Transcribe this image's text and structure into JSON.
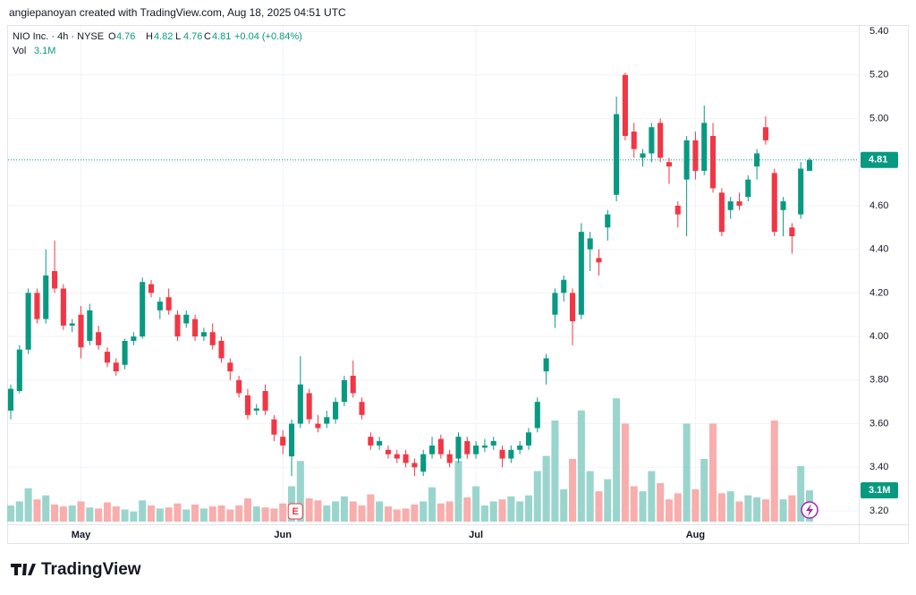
{
  "header": {
    "attribution": "angiepanoyan created with TradingView.com, Aug 18, 2025 04:51 UTC",
    "logo": "TradingView"
  },
  "chart_data": {
    "type": "candlestick",
    "symbol": "NIO Inc. · 4h · NYSE",
    "ohlc_letters": [
      "O",
      "H",
      "L",
      "C"
    ],
    "change_label": "+0.04 (+0.84%)",
    "volume_title": "Vol",
    "volume_label": "3.1M",
    "earnings_marker": "E",
    "up_color": "#089981",
    "down_color": "#f23645",
    "up_volume_color": "#9ad5cd",
    "down_volume_color": "#f7aeac",
    "grid": true,
    "ylim": [
      3.14,
      5.44
    ],
    "yticks": [
      {
        "value": 3.2,
        "label": "3.20"
      },
      {
        "value": 3.4,
        "label": "3.40"
      },
      {
        "value": 3.6,
        "label": "3.60"
      },
      {
        "value": 3.8,
        "label": "3.80"
      },
      {
        "value": 4,
        "label": "4.00"
      },
      {
        "value": 4.2,
        "label": "4.20"
      },
      {
        "value": 4.4,
        "label": "4.40"
      },
      {
        "value": 4.6,
        "label": "4.60"
      },
      {
        "value": 4.8,
        "label": "4.80"
      },
      {
        "value": 5,
        "label": "5.00"
      },
      {
        "value": 5.2,
        "label": "5.20"
      },
      {
        "value": 5.4,
        "label": "5.40"
      }
    ],
    "categories": [
      null,
      null,
      null,
      null,
      null,
      null,
      null,
      null,
      "May",
      null,
      null,
      null,
      null,
      null,
      null,
      null,
      null,
      null,
      null,
      null,
      null,
      null,
      null,
      null,
      null,
      null,
      null,
      null,
      null,
      null,
      null,
      "Jun",
      null,
      null,
      null,
      null,
      null,
      null,
      null,
      null,
      null,
      null,
      null,
      null,
      null,
      null,
      null,
      null,
      null,
      null,
      null,
      null,
      null,
      "Jul",
      null,
      null,
      null,
      null,
      null,
      null,
      null,
      null,
      null,
      null,
      null,
      null,
      null,
      null,
      null,
      null,
      null,
      null,
      null,
      null,
      null,
      null,
      null,
      null,
      "Aug",
      null,
      null,
      null,
      null,
      null,
      null,
      null,
      null,
      null,
      null,
      null,
      null,
      null
    ],
    "candles": [
      {
        "o": 3.66,
        "h": 3.78,
        "l": 3.62,
        "c": 3.76,
        "v": 1.6
      },
      {
        "o": 3.75,
        "h": 3.96,
        "l": 3.74,
        "c": 3.94,
        "v": 2.0
      },
      {
        "o": 3.94,
        "h": 4.22,
        "l": 3.92,
        "c": 4.2,
        "v": 3.3
      },
      {
        "o": 4.2,
        "h": 4.22,
        "l": 4.06,
        "c": 4.08,
        "v": 2.2
      },
      {
        "o": 4.08,
        "h": 4.4,
        "l": 4.06,
        "c": 4.28,
        "v": 2.6
      },
      {
        "o": 4.3,
        "h": 4.44,
        "l": 4.2,
        "c": 4.22,
        "v": 1.7
      },
      {
        "o": 4.22,
        "h": 4.24,
        "l": 4.03,
        "c": 4.05,
        "v": 1.5
      },
      {
        "o": 4.05,
        "h": 4.08,
        "l": 4.02,
        "c": 4.06,
        "v": 1.6
      },
      {
        "o": 4.1,
        "h": 4.14,
        "l": 3.9,
        "c": 3.95,
        "v": 2.0
      },
      {
        "o": 3.98,
        "h": 4.15,
        "l": 3.96,
        "c": 4.12,
        "v": 1.4
      },
      {
        "o": 4.02,
        "h": 4.05,
        "l": 3.94,
        "c": 3.96,
        "v": 1.3
      },
      {
        "o": 3.93,
        "h": 3.95,
        "l": 3.86,
        "c": 3.88,
        "v": 1.9
      },
      {
        "o": 3.88,
        "h": 3.9,
        "l": 3.82,
        "c": 3.84,
        "v": 1.5
      },
      {
        "o": 3.87,
        "h": 3.99,
        "l": 3.85,
        "c": 3.98,
        "v": 1.2
      },
      {
        "o": 3.98,
        "h": 4.02,
        "l": 3.96,
        "c": 4.0,
        "v": 1.0
      },
      {
        "o": 4.0,
        "h": 4.27,
        "l": 3.99,
        "c": 4.25,
        "v": 2.1
      },
      {
        "o": 4.24,
        "h": 4.26,
        "l": 4.18,
        "c": 4.2,
        "v": 1.6
      },
      {
        "o": 4.12,
        "h": 4.18,
        "l": 4.08,
        "c": 4.16,
        "v": 1.3
      },
      {
        "o": 4.18,
        "h": 4.22,
        "l": 4.1,
        "c": 4.12,
        "v": 1.4
      },
      {
        "o": 4.1,
        "h": 4.12,
        "l": 3.98,
        "c": 4.0,
        "v": 1.8
      },
      {
        "o": 4.06,
        "h": 4.12,
        "l": 4.04,
        "c": 4.1,
        "v": 1.2
      },
      {
        "o": 4.08,
        "h": 4.1,
        "l": 3.98,
        "c": 4.0,
        "v": 1.7
      },
      {
        "o": 4.0,
        "h": 4.04,
        "l": 3.98,
        "c": 4.02,
        "v": 1.3
      },
      {
        "o": 4.02,
        "h": 4.06,
        "l": 3.94,
        "c": 3.96,
        "v": 1.5
      },
      {
        "o": 3.98,
        "h": 4.0,
        "l": 3.88,
        "c": 3.9,
        "v": 1.6
      },
      {
        "o": 3.88,
        "h": 3.9,
        "l": 3.8,
        "c": 3.84,
        "v": 1.2
      },
      {
        "o": 3.8,
        "h": 3.82,
        "l": 3.72,
        "c": 3.74,
        "v": 1.6
      },
      {
        "o": 3.73,
        "h": 3.76,
        "l": 3.62,
        "c": 3.64,
        "v": 2.3
      },
      {
        "o": 3.66,
        "h": 3.69,
        "l": 3.64,
        "c": 3.67,
        "v": 1.5
      },
      {
        "o": 3.75,
        "h": 3.78,
        "l": 3.64,
        "c": 3.66,
        "v": 1.4
      },
      {
        "o": 3.62,
        "h": 3.64,
        "l": 3.52,
        "c": 3.55,
        "v": 1.3
      },
      {
        "o": 3.54,
        "h": 3.57,
        "l": 3.46,
        "c": 3.5,
        "v": 1.8
      },
      {
        "o": 3.45,
        "h": 3.62,
        "l": 3.36,
        "c": 3.6,
        "v": 3.5
      },
      {
        "o": 3.6,
        "h": 3.91,
        "l": 3.58,
        "c": 3.78,
        "v": 6.0
      },
      {
        "o": 3.74,
        "h": 3.76,
        "l": 3.6,
        "c": 3.62,
        "v": 2.3
      },
      {
        "o": 3.6,
        "h": 3.64,
        "l": 3.56,
        "c": 3.58,
        "v": 2.1
      },
      {
        "o": 3.6,
        "h": 3.66,
        "l": 3.58,
        "c": 3.63,
        "v": 1.6
      },
      {
        "o": 3.62,
        "h": 3.72,
        "l": 3.6,
        "c": 3.7,
        "v": 2.0
      },
      {
        "o": 3.7,
        "h": 3.82,
        "l": 3.68,
        "c": 3.8,
        "v": 2.5
      },
      {
        "o": 3.82,
        "h": 3.89,
        "l": 3.72,
        "c": 3.74,
        "v": 2.0
      },
      {
        "o": 3.7,
        "h": 3.72,
        "l": 3.62,
        "c": 3.64,
        "v": 1.6
      },
      {
        "o": 3.54,
        "h": 3.56,
        "l": 3.48,
        "c": 3.5,
        "v": 2.7
      },
      {
        "o": 3.5,
        "h": 3.54,
        "l": 3.48,
        "c": 3.52,
        "v": 2.0
      },
      {
        "o": 3.48,
        "h": 3.5,
        "l": 3.44,
        "c": 3.46,
        "v": 1.5
      },
      {
        "o": 3.46,
        "h": 3.48,
        "l": 3.42,
        "c": 3.44,
        "v": 1.2
      },
      {
        "o": 3.46,
        "h": 3.48,
        "l": 3.4,
        "c": 3.42,
        "v": 1.3
      },
      {
        "o": 3.42,
        "h": 3.44,
        "l": 3.36,
        "c": 3.4,
        "v": 1.7
      },
      {
        "o": 3.38,
        "h": 3.48,
        "l": 3.36,
        "c": 3.46,
        "v": 2.0
      },
      {
        "o": 3.46,
        "h": 3.54,
        "l": 3.44,
        "c": 3.5,
        "v": 3.4
      },
      {
        "o": 3.53,
        "h": 3.55,
        "l": 3.44,
        "c": 3.46,
        "v": 1.8
      },
      {
        "o": 3.46,
        "h": 3.48,
        "l": 3.4,
        "c": 3.42,
        "v": 2.0
      },
      {
        "o": 3.44,
        "h": 3.56,
        "l": 3.42,
        "c": 3.54,
        "v": 6.0
      },
      {
        "o": 3.52,
        "h": 3.54,
        "l": 3.44,
        "c": 3.46,
        "v": 2.4
      },
      {
        "o": 3.46,
        "h": 3.52,
        "l": 3.44,
        "c": 3.5,
        "v": 3.5
      },
      {
        "o": 3.49,
        "h": 3.53,
        "l": 3.47,
        "c": 3.5,
        "v": 1.6
      },
      {
        "o": 3.5,
        "h": 3.54,
        "l": 3.48,
        "c": 3.52,
        "v": 2.0
      },
      {
        "o": 3.48,
        "h": 3.5,
        "l": 3.4,
        "c": 3.44,
        "v": 2.2
      },
      {
        "o": 3.44,
        "h": 3.5,
        "l": 3.42,
        "c": 3.48,
        "v": 2.5
      },
      {
        "o": 3.48,
        "h": 3.52,
        "l": 3.46,
        "c": 3.5,
        "v": 2.0
      },
      {
        "o": 3.5,
        "h": 3.58,
        "l": 3.48,
        "c": 3.56,
        "v": 2.6
      },
      {
        "o": 3.58,
        "h": 3.72,
        "l": 3.56,
        "c": 3.7,
        "v": 5.0
      },
      {
        "o": 3.84,
        "h": 3.92,
        "l": 3.78,
        "c": 3.9,
        "v": 6.5
      },
      {
        "o": 4.1,
        "h": 4.22,
        "l": 4.04,
        "c": 4.2,
        "v": 10.0
      },
      {
        "o": 4.2,
        "h": 4.28,
        "l": 4.16,
        "c": 4.26,
        "v": 3.2
      },
      {
        "o": 4.2,
        "h": 4.22,
        "l": 3.96,
        "c": 4.07,
        "v": 6.2
      },
      {
        "o": 4.1,
        "h": 4.52,
        "l": 4.08,
        "c": 4.48,
        "v": 11.0
      },
      {
        "o": 4.4,
        "h": 4.48,
        "l": 4.3,
        "c": 4.45,
        "v": 5.0
      },
      {
        "o": 4.36,
        "h": 4.4,
        "l": 4.28,
        "c": 4.34,
        "v": 3.0
      },
      {
        "o": 4.5,
        "h": 4.58,
        "l": 4.44,
        "c": 4.56,
        "v": 4.2
      },
      {
        "o": 4.65,
        "h": 5.1,
        "l": 4.62,
        "c": 5.02,
        "v": 12.2
      },
      {
        "o": 5.2,
        "h": 5.21,
        "l": 4.9,
        "c": 4.92,
        "v": 9.7
      },
      {
        "o": 4.94,
        "h": 4.98,
        "l": 4.82,
        "c": 4.86,
        "v": 3.5
      },
      {
        "o": 4.82,
        "h": 4.86,
        "l": 4.78,
        "c": 4.84,
        "v": 3.0
      },
      {
        "o": 4.84,
        "h": 4.98,
        "l": 4.8,
        "c": 4.96,
        "v": 5.0
      },
      {
        "o": 4.98,
        "h": 5.0,
        "l": 4.8,
        "c": 4.82,
        "v": 3.8
      },
      {
        "o": 4.8,
        "h": 4.82,
        "l": 4.7,
        "c": 4.78,
        "v": 2.2
      },
      {
        "o": 4.6,
        "h": 4.62,
        "l": 4.5,
        "c": 4.56,
        "v": 2.8
      },
      {
        "o": 4.72,
        "h": 4.92,
        "l": 4.46,
        "c": 4.9,
        "v": 9.7
      },
      {
        "o": 4.9,
        "h": 4.94,
        "l": 4.72,
        "c": 4.76,
        "v": 3.2
      },
      {
        "o": 4.76,
        "h": 5.06,
        "l": 4.74,
        "c": 4.98,
        "v": 6.2
      },
      {
        "o": 4.92,
        "h": 4.98,
        "l": 4.66,
        "c": 4.68,
        "v": 9.7
      },
      {
        "o": 4.66,
        "h": 4.68,
        "l": 4.46,
        "c": 4.48,
        "v": 2.8
      },
      {
        "o": 4.58,
        "h": 4.64,
        "l": 4.54,
        "c": 4.62,
        "v": 3.0
      },
      {
        "o": 4.62,
        "h": 4.66,
        "l": 4.58,
        "c": 4.6,
        "v": 2.0
      },
      {
        "o": 4.64,
        "h": 4.74,
        "l": 4.62,
        "c": 4.72,
        "v": 2.6
      },
      {
        "o": 4.78,
        "h": 4.86,
        "l": 4.72,
        "c": 4.84,
        "v": 2.4
      },
      {
        "o": 4.96,
        "h": 5.01,
        "l": 4.88,
        "c": 4.9,
        "v": 2.2
      },
      {
        "o": 4.75,
        "h": 4.77,
        "l": 4.46,
        "c": 4.48,
        "v": 10.0
      },
      {
        "o": 4.58,
        "h": 4.64,
        "l": 4.46,
        "c": 4.62,
        "v": 2.2
      },
      {
        "o": 4.5,
        "h": 4.52,
        "l": 4.38,
        "c": 4.46,
        "v": 2.6
      },
      {
        "o": 4.56,
        "h": 4.8,
        "l": 4.54,
        "c": 4.77,
        "v": 5.5
      },
      {
        "o": 4.76,
        "h": 4.82,
        "l": 4.76,
        "c": 4.81,
        "v": 3.1
      }
    ]
  }
}
